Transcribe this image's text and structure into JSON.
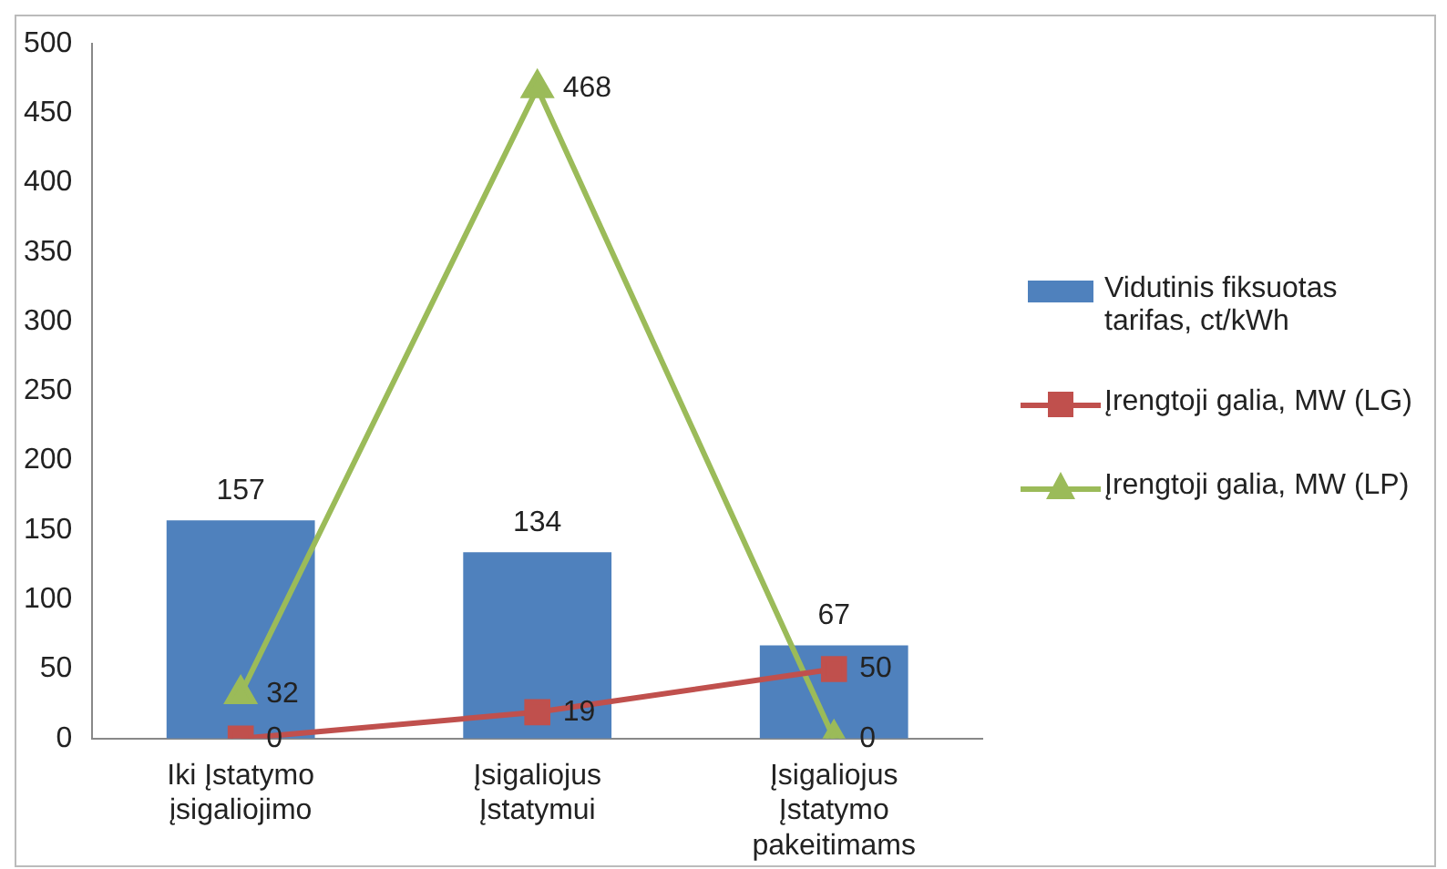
{
  "chart_data": {
    "type": "bar",
    "categories": [
      "Iki Įstatymo įsigaliojimo",
      "Įsigaliojus Įstatymui",
      "Įsigaliojus Įstatymo pakeitimams"
    ],
    "series": [
      {
        "name": "Vidutinis fiksuotas tarifas, ct/kWh",
        "color": "#4f81bd",
        "values": [
          157,
          134,
          67
        ]
      },
      {
        "name": "Įrengtoji galia, MW (LG)",
        "type": "line",
        "color": "#c0504d",
        "marker": "square",
        "values": [
          0,
          19,
          50
        ]
      },
      {
        "name": "Įrengtoji galia, MW (LP)",
        "type": "line",
        "color": "#9bbb59",
        "marker": "triangle",
        "values": [
          32,
          468,
          0
        ]
      }
    ],
    "ylim": [
      0,
      500
    ],
    "yticks": [
      0,
      50,
      100,
      150,
      200,
      250,
      300,
      350,
      400,
      450,
      500
    ],
    "grid": false,
    "legend": "right",
    "data_labels": true
  }
}
